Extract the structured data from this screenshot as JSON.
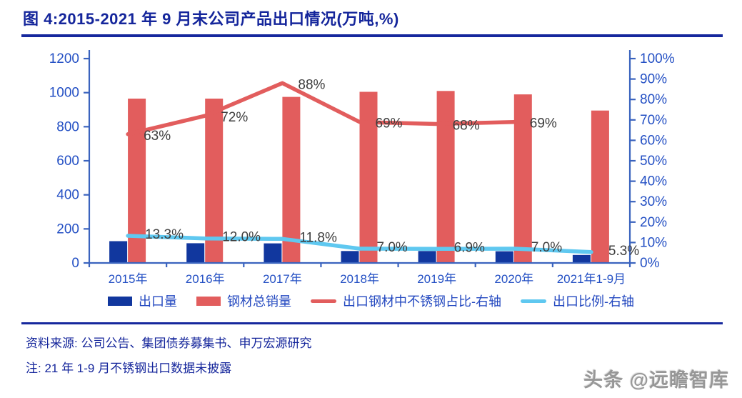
{
  "title": "图 4:2015-2021 年 9 月末公司产品出口情况(万吨,%)",
  "source": "资料来源: 公司公告、集团债券募集书、申万宏源研究",
  "note": "注: 21 年 1-9 月不锈钢出口数据未披露",
  "watermark": "头条 @远瞻智库",
  "colors": {
    "accent": "#14259b",
    "axis": "#3a63be",
    "axis_text": "#2450c4",
    "data_label": "#3d3d3d",
    "bar_blue": "#11379e",
    "bar_red": "#e25d5d",
    "line_red": "#e25d5d",
    "line_cyan": "#5fc8f0"
  },
  "chart_data": {
    "type": "combo (bar + line)",
    "title": "2015-2021年9月末公司产品出口情况(万吨,%)",
    "categories": [
      "2015年",
      "2016年",
      "2017年",
      "2018年",
      "2019年",
      "2020年",
      "2021年1-9月"
    ],
    "left_axis": {
      "min": 0,
      "max": 1200,
      "ticks": [
        0,
        200,
        400,
        600,
        800,
        1000,
        1200
      ]
    },
    "right_axis": {
      "min": 0,
      "max": 100,
      "tick_labels": [
        "0%",
        "10%",
        "20%",
        "30%",
        "40%",
        "50%",
        "60%",
        "70%",
        "80%",
        "90%",
        "100%"
      ]
    },
    "grid": false,
    "legend_position": "bottom",
    "series": [
      {
        "name": "出口量",
        "type": "bar",
        "axis": "left",
        "color": "#11379e",
        "values": [
          128,
          116,
          115,
          70,
          70,
          69,
          47
        ]
      },
      {
        "name": "钢材总销量",
        "type": "bar",
        "axis": "left",
        "color": "#e25d5d",
        "values": [
          965,
          965,
          975,
          1005,
          1010,
          990,
          895
        ]
      },
      {
        "name": "出口钢材中不锈钢占比-右轴",
        "type": "line",
        "axis": "right",
        "color": "#e25d5d",
        "values": [
          63,
          72,
          88,
          69,
          68,
          69,
          null
        ],
        "labels": [
          "63%",
          "72%",
          "88%",
          "69%",
          "68%",
          "69%",
          ""
        ],
        "label_dx": 22,
        "label_dy": 8
      },
      {
        "name": "出口比例-右轴",
        "type": "line",
        "axis": "right",
        "color": "#5fc8f0",
        "values": [
          13.3,
          12.0,
          11.8,
          7.0,
          6.9,
          7.0,
          5.3
        ],
        "labels": [
          "13.3%",
          "12.0%",
          "11.8%",
          "7.0%",
          "6.9%",
          "7.0%",
          "5.3%"
        ],
        "label_dx": 24,
        "label_dy": 4
      }
    ]
  }
}
